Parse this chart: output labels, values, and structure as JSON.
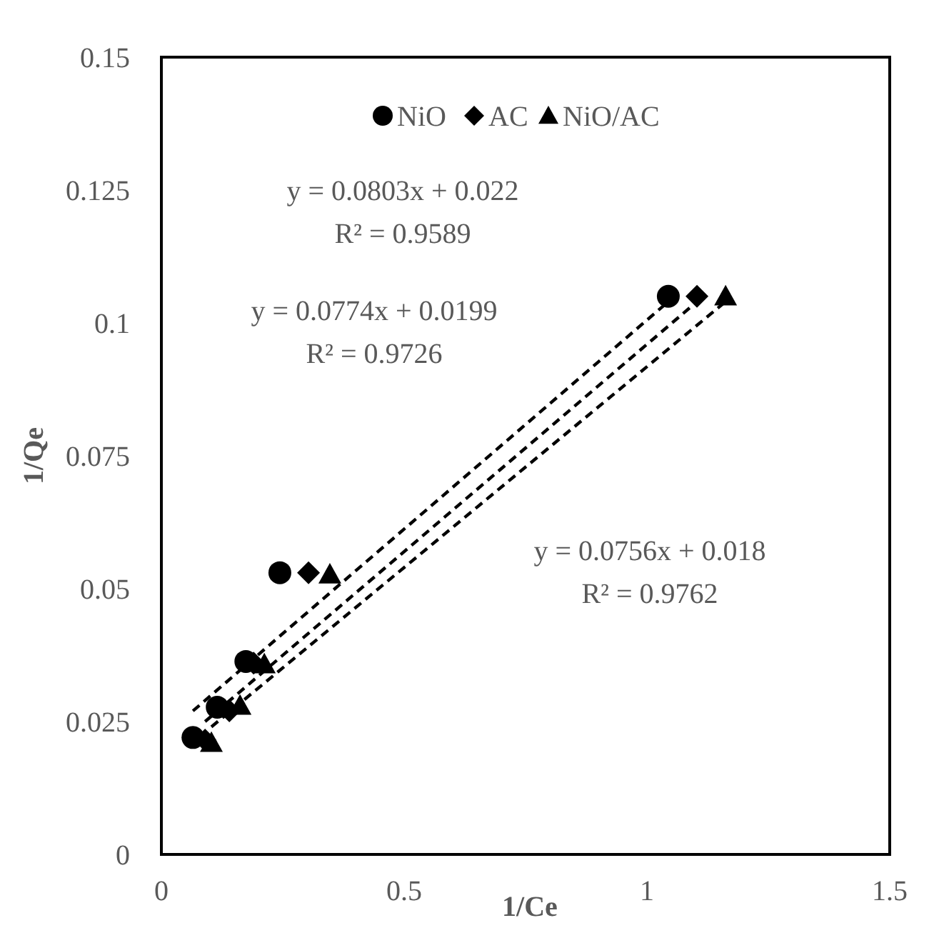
{
  "chart_data": {
    "type": "scatter",
    "xlabel": "1/Ce",
    "ylabel": "1/Qe",
    "xlim": [
      0,
      1.5
    ],
    "xticks": [
      0,
      0.5,
      1,
      1.5
    ],
    "ylim": [
      0,
      0.15
    ],
    "yticks": [
      0,
      0.025,
      0.05,
      0.075,
      0.1,
      0.125,
      0.15
    ],
    "grid": false,
    "legend": "top",
    "series": [
      {
        "name": "NiO",
        "color": "#000000",
        "marker": "circle",
        "x": [
          0.065,
          0.115,
          0.174,
          0.244,
          1.044
        ],
        "values": [
          0.022,
          0.0277,
          0.0363,
          0.053,
          0.105
        ]
      },
      {
        "name": "AC",
        "color": "#000000",
        "marker": "diamond",
        "x": [
          0.09,
          0.14,
          0.19,
          0.303,
          1.103
        ],
        "values": [
          0.0215,
          0.027,
          0.036,
          0.053,
          0.105
        ]
      },
      {
        "name": "NiO/AC",
        "color": "#000000",
        "marker": "triangle",
        "x": [
          0.103,
          0.162,
          0.212,
          0.347,
          1.162
        ],
        "values": [
          0.021,
          0.028,
          0.0358,
          0.0527,
          0.105
        ]
      },
      {
        "type": "line",
        "color": "#000000",
        "line_style": "dashed",
        "marker": "none",
        "x": [
          0.065,
          1.044
        ],
        "values": [
          0.027,
          0.104
        ]
      },
      {
        "type": "line",
        "color": "#000000",
        "line_style": "dashed",
        "marker": "none",
        "x": [
          0.09,
          1.103
        ],
        "values": [
          0.025,
          0.104
        ]
      },
      {
        "type": "line",
        "color": "#000000",
        "line_style": "dashed",
        "marker": "none",
        "x": [
          0.103,
          1.162
        ],
        "values": [
          0.024,
          0.104
        ]
      }
    ],
    "annotations": [
      "y = 0.0803x + 0.022\nR² = 0.9589",
      "y = 0.0774x + 0.0199\nR² = 0.9726",
      "y = 0.0756x + 0.018\nR² = 0.9762"
    ]
  }
}
